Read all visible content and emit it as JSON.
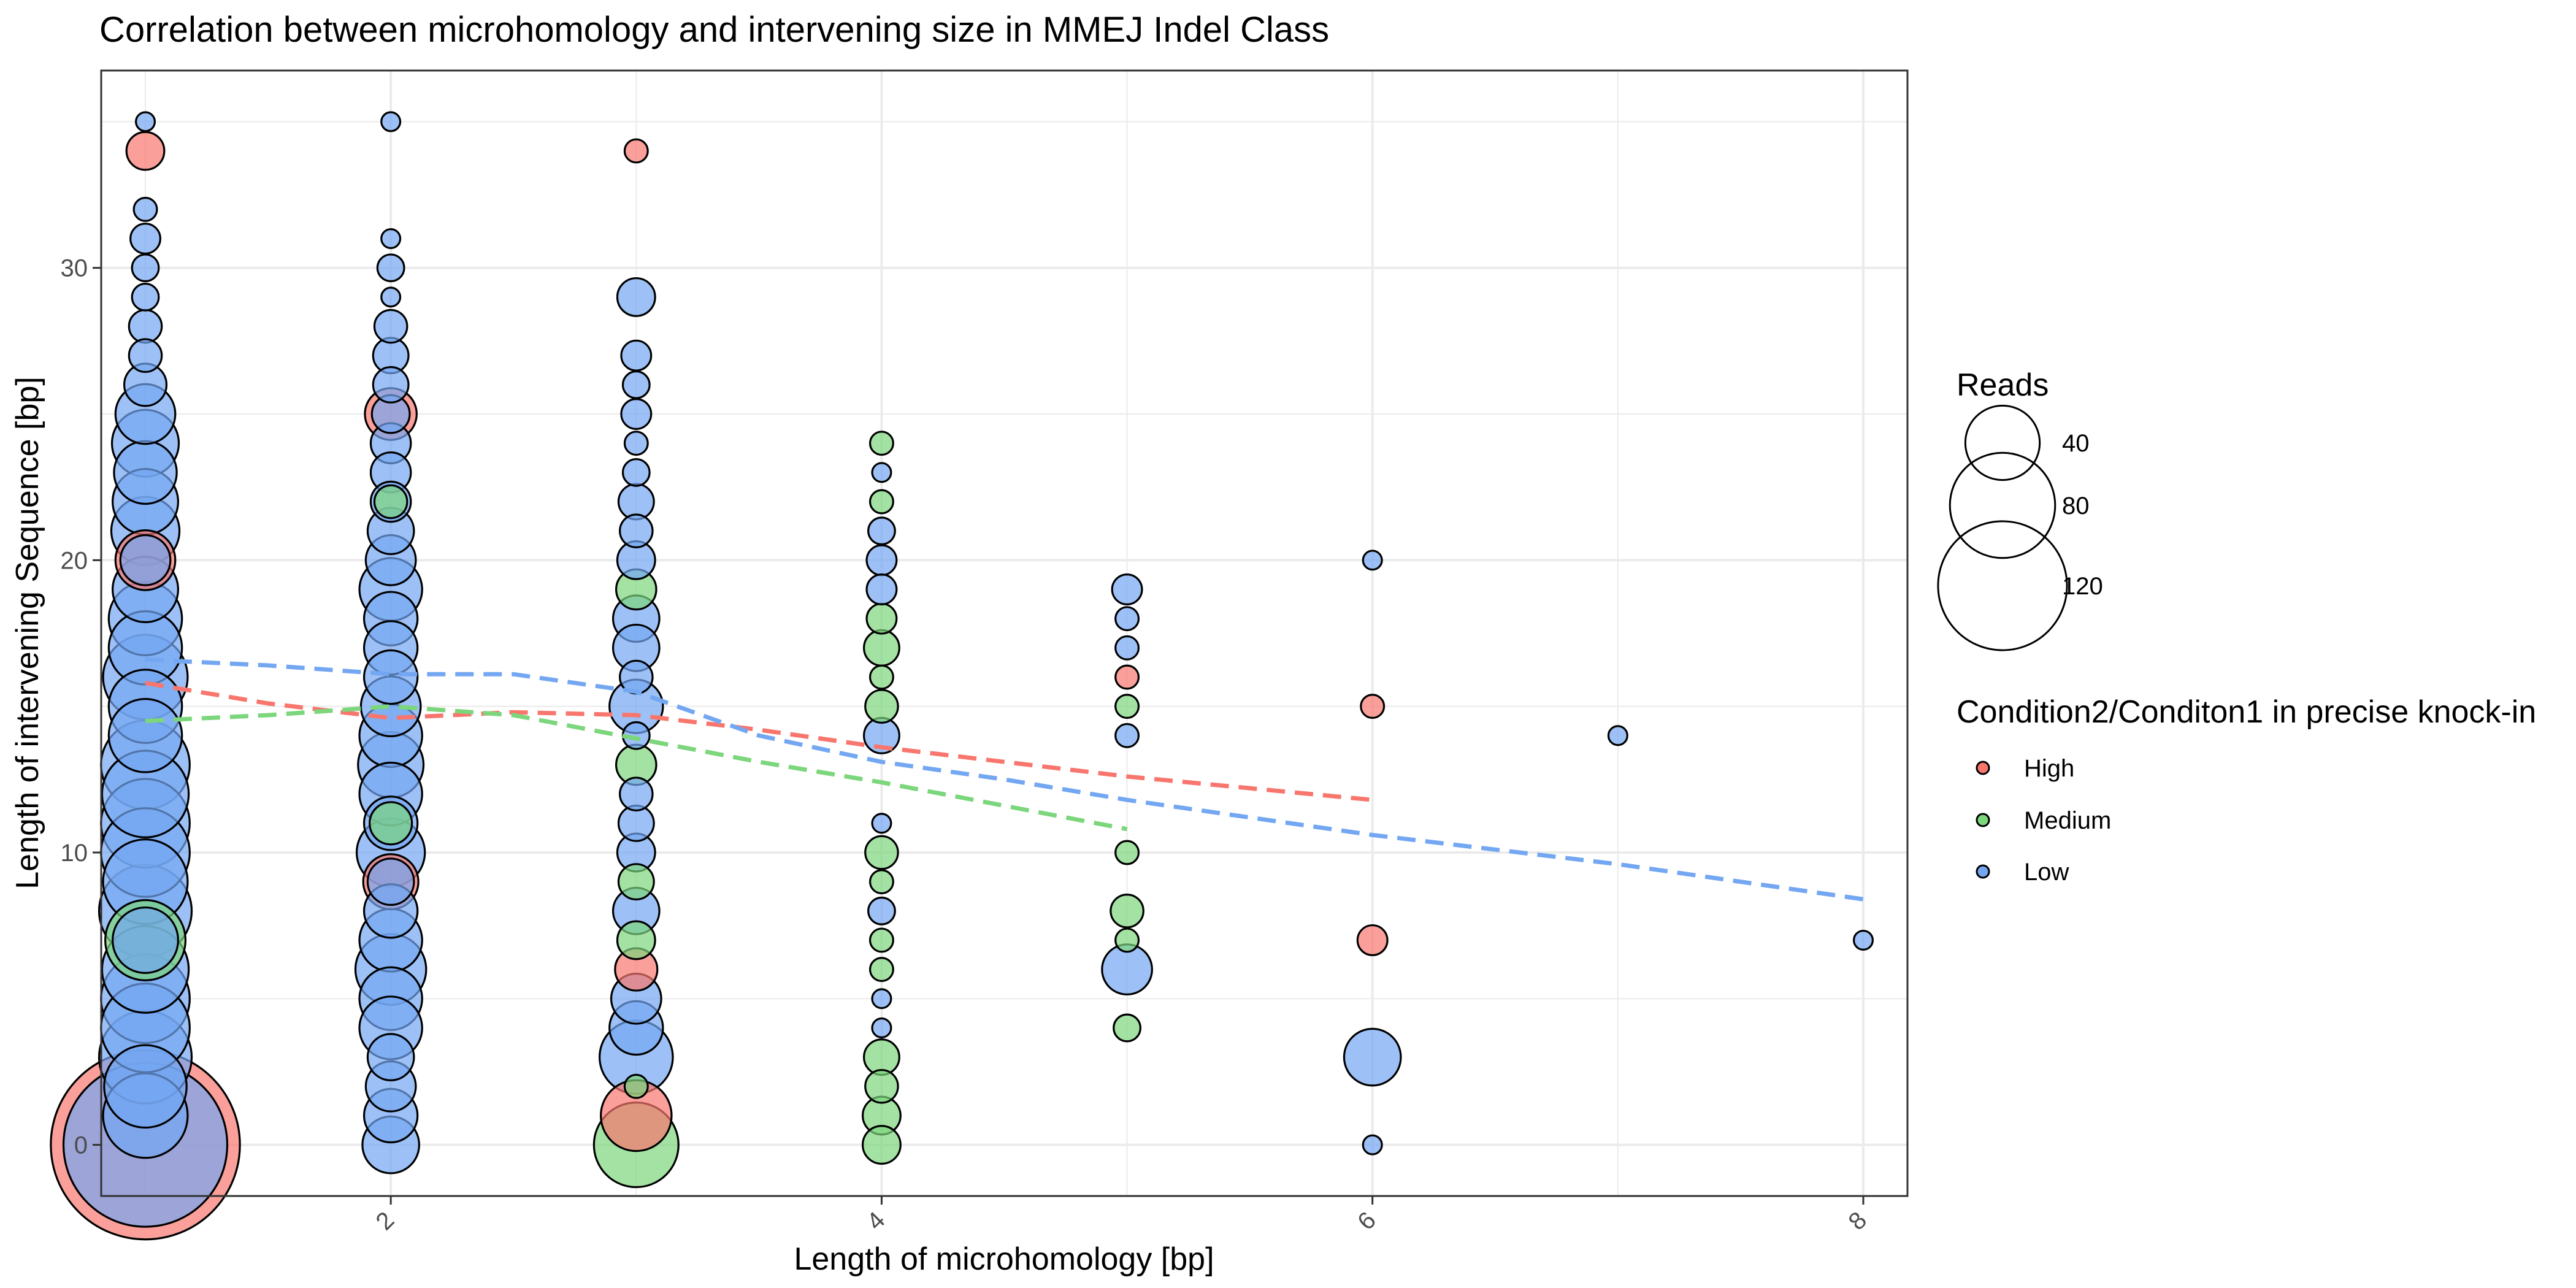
{
  "chart_data": {
    "type": "scatter",
    "title": "Correlation between microhomology and intervening size in MMEJ Indel Class",
    "xlabel": "Length of microhomology [bp]",
    "ylabel": "Length of intervening Sequence [bp]",
    "xlim": [
      0.82,
      8.18
    ],
    "ylim": [
      -1.75,
      36.75
    ],
    "x_ticks": [
      2,
      4,
      6,
      8
    ],
    "y_ticks": [
      0,
      10,
      20,
      30
    ],
    "grid": true,
    "size_legend": {
      "title": "Reads",
      "values": [
        40,
        80,
        120
      ]
    },
    "color_legend": {
      "title": "Condition2/Conditon1 in precise knock-in",
      "entries": [
        {
          "label": "High",
          "color": "#F8766D"
        },
        {
          "label": "Medium",
          "color": "#7CD67C"
        },
        {
          "label": "Low",
          "color": "#74A7F2"
        }
      ]
    },
    "series": [
      {
        "name": "High",
        "color": "#F8766D",
        "trend": [
          [
            1,
            15.8
          ],
          [
            1.5,
            15.1
          ],
          [
            2,
            14.6
          ],
          [
            2.5,
            14.8
          ],
          [
            3,
            14.7
          ],
          [
            3.5,
            14.2
          ],
          [
            4,
            13.6
          ],
          [
            4.5,
            13.1
          ],
          [
            5,
            12.6
          ],
          [
            5.5,
            12.2
          ],
          [
            6,
            11.8
          ]
        ],
        "points": [
          {
            "x": 1,
            "y": 34,
            "reads": 8
          },
          {
            "x": 1,
            "y": 20,
            "reads": 20
          },
          {
            "x": 1,
            "y": 0,
            "reads": 200
          },
          {
            "x": 2,
            "y": 25,
            "reads": 15
          },
          {
            "x": 2,
            "y": 9,
            "reads": 17
          },
          {
            "x": 3,
            "y": 34,
            "reads": 3
          },
          {
            "x": 3,
            "y": 6,
            "reads": 10
          },
          {
            "x": 3,
            "y": 1,
            "reads": 28
          },
          {
            "x": 5,
            "y": 16,
            "reads": 3
          },
          {
            "x": 6,
            "y": 15,
            "reads": 3
          },
          {
            "x": 6,
            "y": 7,
            "reads": 5
          }
        ]
      },
      {
        "name": "Medium",
        "color": "#7CD67C",
        "trend": [
          [
            1,
            14.5
          ],
          [
            1.5,
            14.7
          ],
          [
            2,
            15.0
          ],
          [
            2.5,
            14.7
          ],
          [
            3,
            13.9
          ],
          [
            3.5,
            13.1
          ],
          [
            4,
            12.4
          ],
          [
            4.5,
            11.6
          ],
          [
            5,
            10.8
          ]
        ],
        "points": [
          {
            "x": 1,
            "y": 7,
            "reads": 36
          },
          {
            "x": 2,
            "y": 22,
            "reads": 6
          },
          {
            "x": 2,
            "y": 11,
            "reads": 10
          },
          {
            "x": 3,
            "y": 19,
            "reads": 9
          },
          {
            "x": 3,
            "y": 13,
            "reads": 9
          },
          {
            "x": 3,
            "y": 9,
            "reads": 7
          },
          {
            "x": 3,
            "y": 7,
            "reads": 8
          },
          {
            "x": 3,
            "y": 2,
            "reads": 3
          },
          {
            "x": 3,
            "y": 0,
            "reads": 40
          },
          {
            "x": 4,
            "y": 24,
            "reads": 3
          },
          {
            "x": 4,
            "y": 22,
            "reads": 3
          },
          {
            "x": 4,
            "y": 18,
            "reads": 5
          },
          {
            "x": 4,
            "y": 17,
            "reads": 7
          },
          {
            "x": 4,
            "y": 16,
            "reads": 3
          },
          {
            "x": 4,
            "y": 15,
            "reads": 6
          },
          {
            "x": 4,
            "y": 10,
            "reads": 6
          },
          {
            "x": 4,
            "y": 9,
            "reads": 3
          },
          {
            "x": 4,
            "y": 7,
            "reads": 3
          },
          {
            "x": 4,
            "y": 6,
            "reads": 3
          },
          {
            "x": 4,
            "y": 3,
            "reads": 7
          },
          {
            "x": 4,
            "y": 2,
            "reads": 6
          },
          {
            "x": 4,
            "y": 1,
            "reads": 8
          },
          {
            "x": 4,
            "y": 0,
            "reads": 8
          },
          {
            "x": 5,
            "y": 15,
            "reads": 3
          },
          {
            "x": 5,
            "y": 10,
            "reads": 3
          },
          {
            "x": 5,
            "y": 8,
            "reads": 6
          },
          {
            "x": 5,
            "y": 7,
            "reads": 3
          },
          {
            "x": 5,
            "y": 4,
            "reads": 4
          }
        ]
      },
      {
        "name": "Low",
        "color": "#74A7F2",
        "trend": [
          [
            1,
            16.6
          ],
          [
            1.5,
            16.4
          ],
          [
            2,
            16.1
          ],
          [
            2.5,
            16.1
          ],
          [
            3,
            15.5
          ],
          [
            3.5,
            14.0
          ],
          [
            4,
            13.1
          ],
          [
            4.5,
            12.5
          ],
          [
            5,
            11.8
          ],
          [
            5.5,
            11.2
          ],
          [
            6,
            10.6
          ],
          [
            6.5,
            10.1
          ],
          [
            7,
            9.6
          ],
          [
            7.5,
            9.0
          ],
          [
            8,
            8.4
          ]
        ],
        "points": [
          {
            "x": 1,
            "y": 35,
            "reads": 2
          },
          {
            "x": 1,
            "y": 32,
            "reads": 3
          },
          {
            "x": 1,
            "y": 31,
            "reads": 5
          },
          {
            "x": 1,
            "y": 30,
            "reads": 4
          },
          {
            "x": 1,
            "y": 29,
            "reads": 4
          },
          {
            "x": 1,
            "y": 28,
            "reads": 6
          },
          {
            "x": 1,
            "y": 27,
            "reads": 6
          },
          {
            "x": 1,
            "y": 26,
            "reads": 10
          },
          {
            "x": 1,
            "y": 25,
            "reads": 20
          },
          {
            "x": 1,
            "y": 24,
            "reads": 25
          },
          {
            "x": 1,
            "y": 23,
            "reads": 22
          },
          {
            "x": 1,
            "y": 22,
            "reads": 24
          },
          {
            "x": 1,
            "y": 21,
            "reads": 26
          },
          {
            "x": 1,
            "y": 20,
            "reads": 14
          },
          {
            "x": 1,
            "y": 19,
            "reads": 24
          },
          {
            "x": 1,
            "y": 18,
            "reads": 30
          },
          {
            "x": 1,
            "y": 17,
            "reads": 30
          },
          {
            "x": 1,
            "y": 16,
            "reads": 40
          },
          {
            "x": 1,
            "y": 15,
            "reads": 30
          },
          {
            "x": 1,
            "y": 14,
            "reads": 30
          },
          {
            "x": 1,
            "y": 13,
            "reads": 44
          },
          {
            "x": 1,
            "y": 12,
            "reads": 42
          },
          {
            "x": 1,
            "y": 11,
            "reads": 44
          },
          {
            "x": 1,
            "y": 10,
            "reads": 44
          },
          {
            "x": 1,
            "y": 9,
            "reads": 40
          },
          {
            "x": 1,
            "y": 8,
            "reads": 48
          },
          {
            "x": 1,
            "y": 7,
            "reads": 24
          },
          {
            "x": 1,
            "y": 6,
            "reads": 42
          },
          {
            "x": 1,
            "y": 5,
            "reads": 44
          },
          {
            "x": 1,
            "y": 4,
            "reads": 44
          },
          {
            "x": 1,
            "y": 3,
            "reads": 48
          },
          {
            "x": 1,
            "y": 2,
            "reads": 38
          },
          {
            "x": 1,
            "y": 1,
            "reads": 40
          },
          {
            "x": 1,
            "y": 0,
            "reads": 150
          },
          {
            "x": 2,
            "y": 35,
            "reads": 2
          },
          {
            "x": 2,
            "y": 31,
            "reads": 2
          },
          {
            "x": 2,
            "y": 30,
            "reads": 4
          },
          {
            "x": 2,
            "y": 29,
            "reads": 2
          },
          {
            "x": 2,
            "y": 28,
            "reads": 6
          },
          {
            "x": 2,
            "y": 27,
            "reads": 7
          },
          {
            "x": 2,
            "y": 26,
            "reads": 7
          },
          {
            "x": 2,
            "y": 25,
            "reads": 8
          },
          {
            "x": 2,
            "y": 24,
            "reads": 9
          },
          {
            "x": 2,
            "y": 23,
            "reads": 9
          },
          {
            "x": 2,
            "y": 22,
            "reads": 9
          },
          {
            "x": 2,
            "y": 21,
            "reads": 12
          },
          {
            "x": 2,
            "y": 20,
            "reads": 14
          },
          {
            "x": 2,
            "y": 19,
            "reads": 22
          },
          {
            "x": 2,
            "y": 18,
            "reads": 16
          },
          {
            "x": 2,
            "y": 17,
            "reads": 16
          },
          {
            "x": 2,
            "y": 16,
            "reads": 16
          },
          {
            "x": 2,
            "y": 15,
            "reads": 20
          },
          {
            "x": 2,
            "y": 14,
            "reads": 22
          },
          {
            "x": 2,
            "y": 13,
            "reads": 24
          },
          {
            "x": 2,
            "y": 12,
            "reads": 22
          },
          {
            "x": 2,
            "y": 11,
            "reads": 16
          },
          {
            "x": 2,
            "y": 10,
            "reads": 26
          },
          {
            "x": 2,
            "y": 9,
            "reads": 12
          },
          {
            "x": 2,
            "y": 8,
            "reads": 16
          },
          {
            "x": 2,
            "y": 7,
            "reads": 22
          },
          {
            "x": 2,
            "y": 6,
            "reads": 28
          },
          {
            "x": 2,
            "y": 5,
            "reads": 22
          },
          {
            "x": 2,
            "y": 4,
            "reads": 22
          },
          {
            "x": 2,
            "y": 3,
            "reads": 12
          },
          {
            "x": 2,
            "y": 2,
            "reads": 14
          },
          {
            "x": 2,
            "y": 1,
            "reads": 16
          },
          {
            "x": 2,
            "y": 0,
            "reads": 18
          },
          {
            "x": 3,
            "y": 29,
            "reads": 8
          },
          {
            "x": 3,
            "y": 27,
            "reads": 5
          },
          {
            "x": 3,
            "y": 26,
            "reads": 4
          },
          {
            "x": 3,
            "y": 25,
            "reads": 5
          },
          {
            "x": 3,
            "y": 24,
            "reads": 3
          },
          {
            "x": 3,
            "y": 23,
            "reads": 4
          },
          {
            "x": 3,
            "y": 22,
            "reads": 7
          },
          {
            "x": 3,
            "y": 21,
            "reads": 6
          },
          {
            "x": 3,
            "y": 20,
            "reads": 8
          },
          {
            "x": 3,
            "y": 18,
            "reads": 12
          },
          {
            "x": 3,
            "y": 17,
            "reads": 12
          },
          {
            "x": 3,
            "y": 16,
            "reads": 6
          },
          {
            "x": 3,
            "y": 15,
            "reads": 16
          },
          {
            "x": 3,
            "y": 14,
            "reads": 4
          },
          {
            "x": 3,
            "y": 12,
            "reads": 6
          },
          {
            "x": 3,
            "y": 11,
            "reads": 7
          },
          {
            "x": 3,
            "y": 10,
            "reads": 8
          },
          {
            "x": 3,
            "y": 8,
            "reads": 12
          },
          {
            "x": 3,
            "y": 5,
            "reads": 14
          },
          {
            "x": 3,
            "y": 4,
            "reads": 16
          },
          {
            "x": 3,
            "y": 3,
            "reads": 30
          },
          {
            "x": 4,
            "y": 23,
            "reads": 2
          },
          {
            "x": 4,
            "y": 21,
            "reads": 4
          },
          {
            "x": 4,
            "y": 20,
            "reads": 5
          },
          {
            "x": 4,
            "y": 19,
            "reads": 5
          },
          {
            "x": 4,
            "y": 14,
            "reads": 7
          },
          {
            "x": 4,
            "y": 11,
            "reads": 2
          },
          {
            "x": 4,
            "y": 8,
            "reads": 4
          },
          {
            "x": 4,
            "y": 5,
            "reads": 2
          },
          {
            "x": 4,
            "y": 4,
            "reads": 2
          },
          {
            "x": 5,
            "y": 19,
            "reads": 5
          },
          {
            "x": 5,
            "y": 18,
            "reads": 3
          },
          {
            "x": 5,
            "y": 17,
            "reads": 3
          },
          {
            "x": 5,
            "y": 14,
            "reads": 3
          },
          {
            "x": 5,
            "y": 6,
            "reads": 14
          },
          {
            "x": 6,
            "y": 20,
            "reads": 2
          },
          {
            "x": 6,
            "y": 3,
            "reads": 18
          },
          {
            "x": 6,
            "y": 0,
            "reads": 2
          },
          {
            "x": 7,
            "y": 14,
            "reads": 2
          },
          {
            "x": 8,
            "y": 7,
            "reads": 2
          }
        ]
      }
    ]
  }
}
